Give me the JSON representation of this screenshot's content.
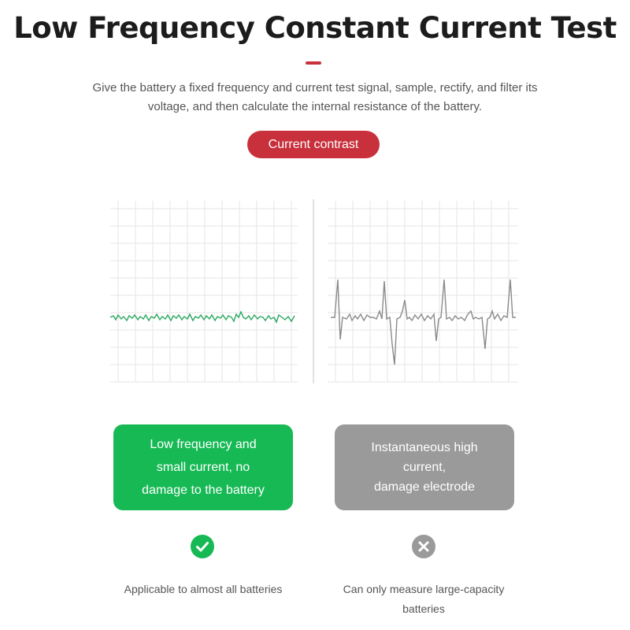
{
  "title": "Low Frequency Constant Current Test",
  "description": "Give the battery a fixed frequency and current test signal, sample, rectify, and filter its voltage, and then calculate the internal resistance of the battery.",
  "button_label": "Current contrast",
  "colors": {
    "accent": "#c8303c",
    "good": "#16b954",
    "bad": "#9a9a9a",
    "grid": "#e6e6e6",
    "good_wave": "#2aa860",
    "bad_wave": "#8a8a8a"
  },
  "comparison": {
    "good": {
      "card_lines": [
        "Low frequency and",
        "small current, no",
        "damage to the battery"
      ],
      "icon": "check-circle-icon",
      "caption_lines": [
        "Applicable to almost all batteries"
      ]
    },
    "bad": {
      "card_lines": [
        "Instantaneous high",
        "current,",
        "damage electrode"
      ],
      "icon": "x-circle-icon",
      "caption_lines": [
        "Can only measure large-capacity",
        "batteries"
      ]
    }
  }
}
